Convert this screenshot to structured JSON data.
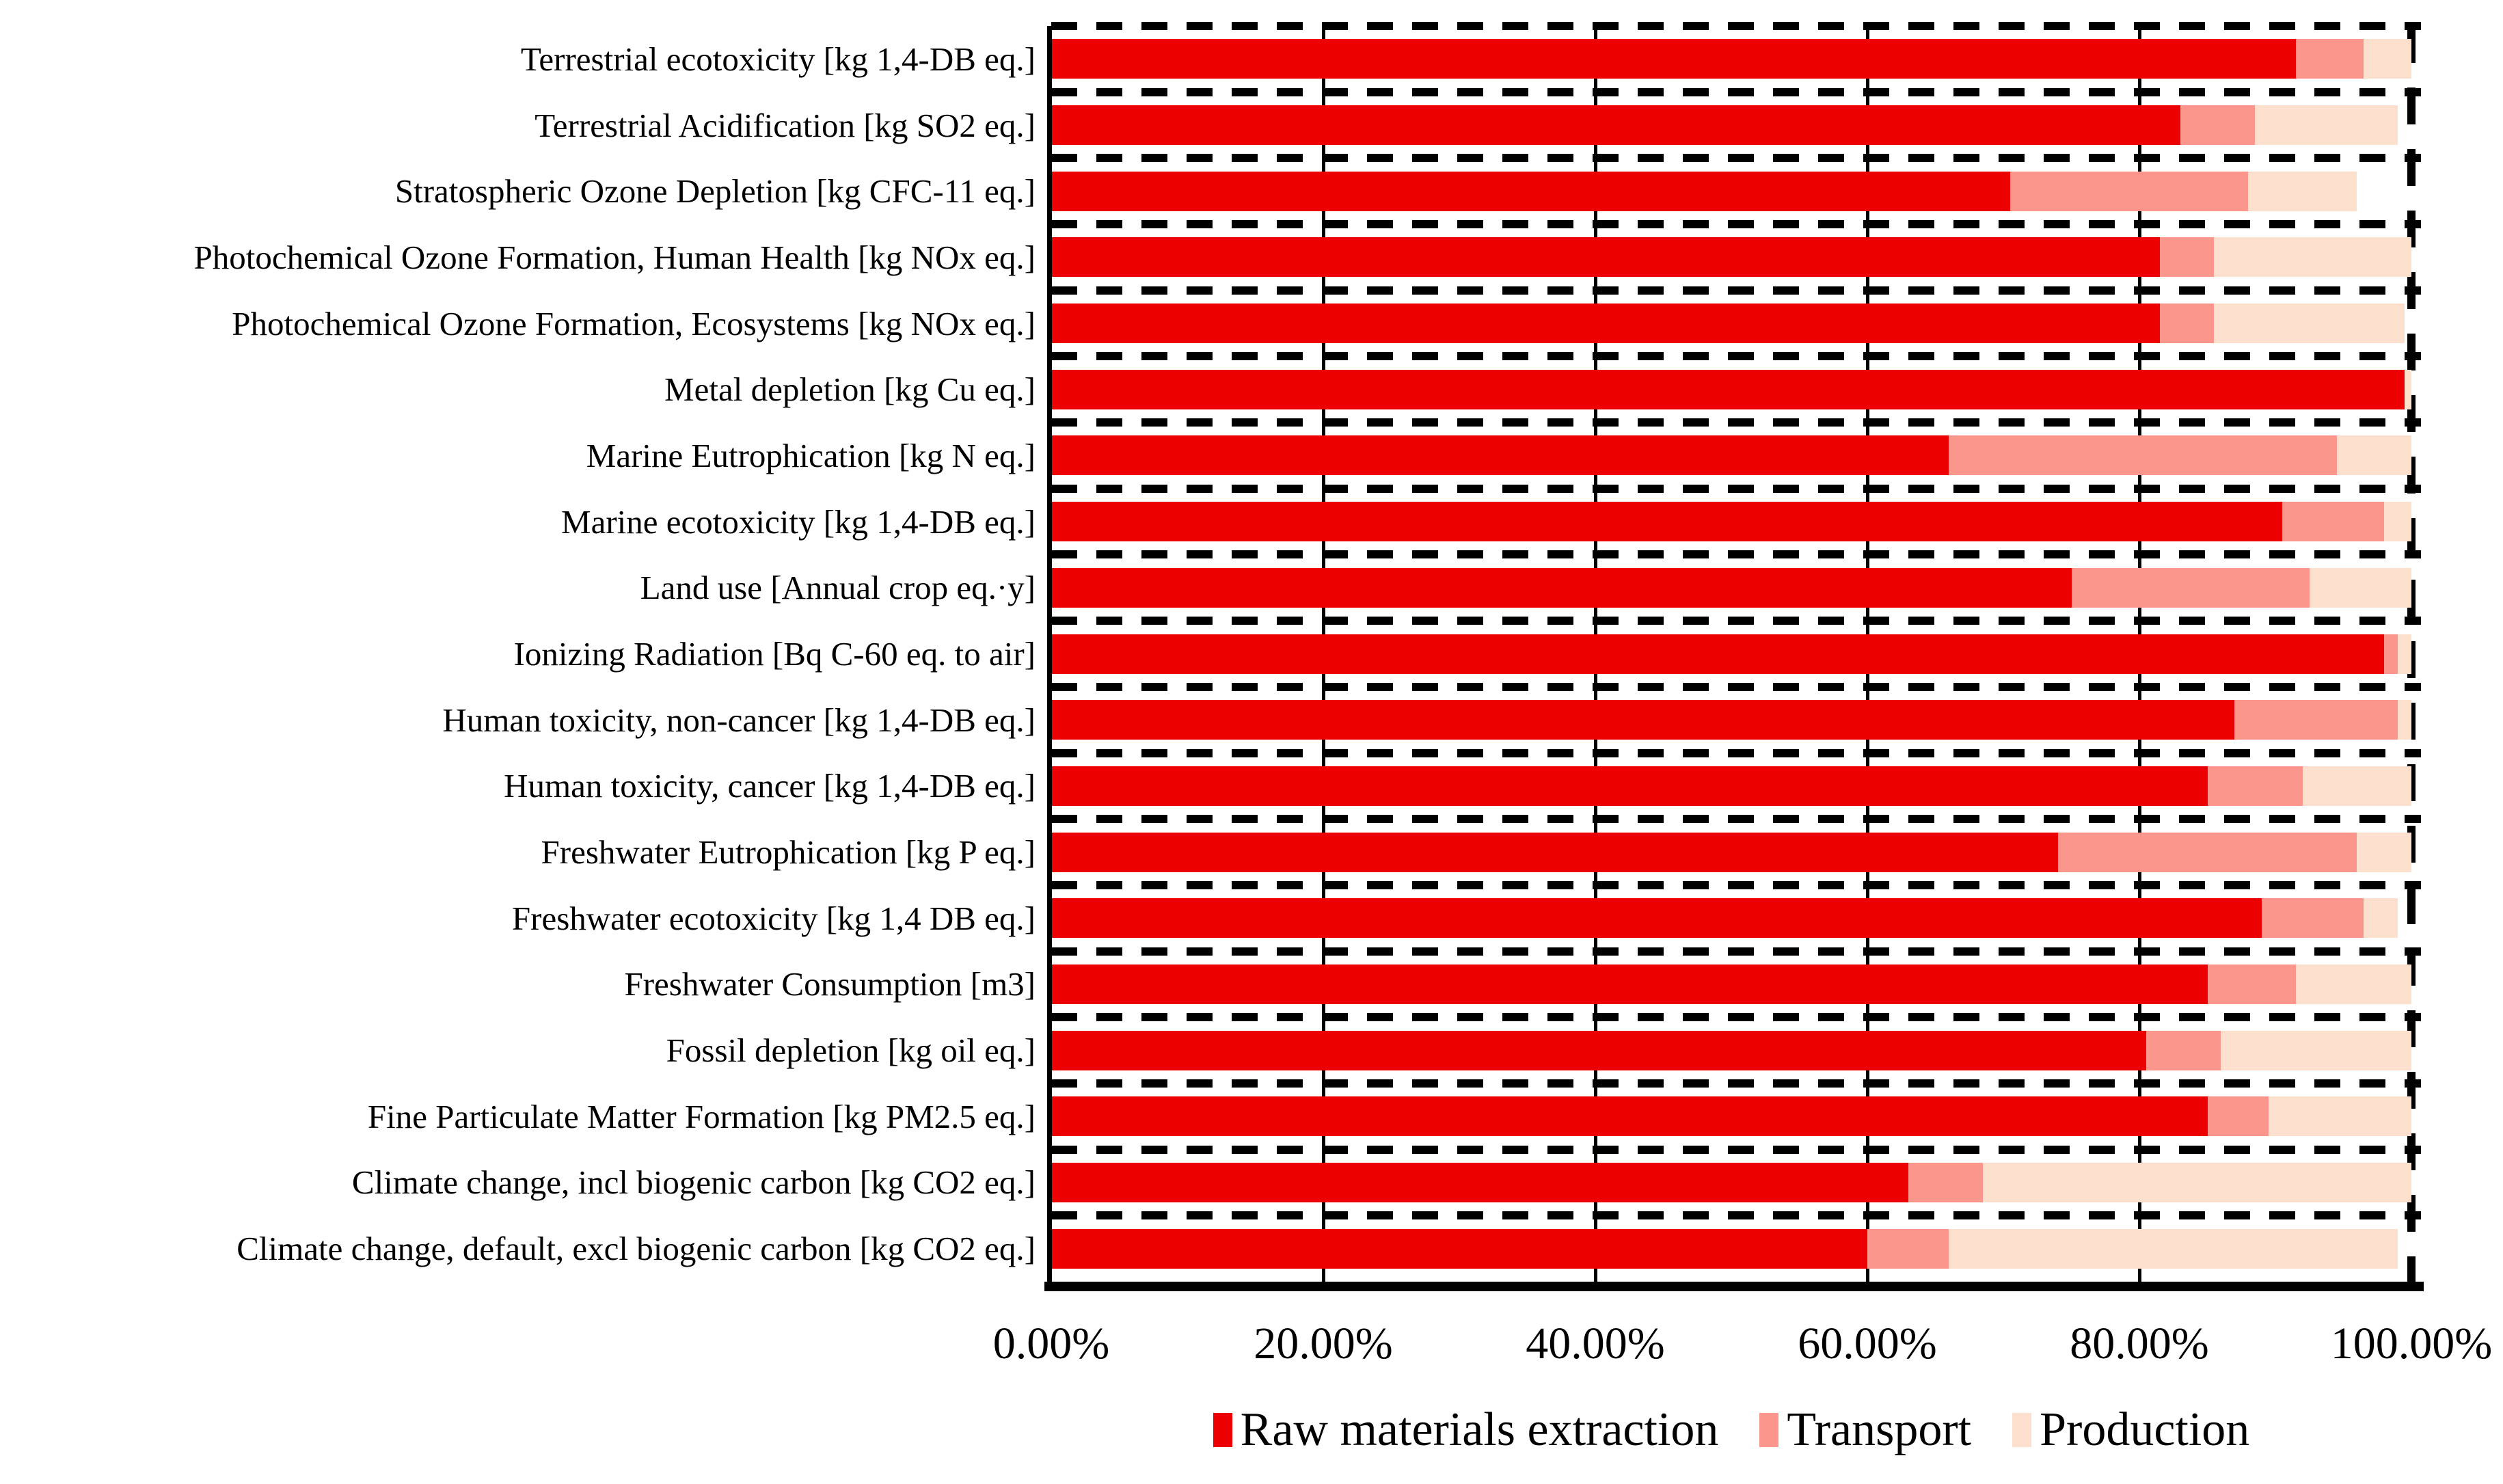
{
  "chart_data": {
    "type": "bar",
    "orientation": "horizontal",
    "stacked": true,
    "unit": "percent of impact per category",
    "title": "",
    "xlabel": "",
    "ylabel": "",
    "xlim": [
      0,
      100
    ],
    "x_tick_percents": [
      0,
      20,
      40,
      60,
      80,
      100
    ],
    "x_ticks": [
      "0.00%",
      "20.00%",
      "40.00%",
      "60.00%",
      "80.00%",
      "100.00%"
    ],
    "grid": "solid vertical major gridlines at 20-80%, dashed vertical border at 100%, dashed horizontal row separators",
    "legend_position": "bottom",
    "categories": [
      "Terrestrial ecotoxicity [kg 1,4-DB eq.]",
      "Terrestrial Acidification [kg SO2 eq.]",
      "Stratospheric Ozone Depletion [kg CFC-11 eq.]",
      "Photochemical Ozone Formation, Human Health [kg NOx eq.]",
      "Photochemical Ozone Formation, Ecosystems [kg NOx eq.]",
      "Metal depletion [kg Cu eq.]",
      "Marine Eutrophication [kg N eq.]",
      "Marine ecotoxicity [kg 1,4-DB eq.]",
      "Land use [Annual crop eq.·y]",
      "Ionizing Radiation [Bq C-60 eq. to air]",
      "Human toxicity, non-cancer [kg 1,4-DB eq.]",
      "Human toxicity, cancer [kg 1,4-DB eq.]",
      "Freshwater Eutrophication [kg P eq.]",
      "Freshwater ecotoxicity [kg 1,4 DB eq.]",
      "Freshwater Consumption [m3]",
      "Fossil depletion [kg oil eq.]",
      "Fine Particulate Matter Formation [kg PM2.5 eq.]",
      "Climate change, incl biogenic carbon [kg CO2 eq.]",
      "Climate change, default, excl biogenic carbon [kg CO2 eq.]"
    ],
    "series": [
      {
        "name": "Raw materials extraction",
        "color": "#ec0000",
        "values": [
          91.5,
          83,
          70.5,
          81.5,
          81.5,
          99.5,
          66,
          90.5,
          75,
          98,
          87,
          85,
          74,
          89,
          85,
          80.5,
          85,
          63,
          60
        ]
      },
      {
        "name": "Transport",
        "color": "#fa968b",
        "values": [
          5,
          5.5,
          17.5,
          4,
          4,
          0,
          28.5,
          7.5,
          17.5,
          1,
          12,
          7,
          22,
          7.5,
          6.5,
          5.5,
          4.5,
          5.5,
          6
        ]
      },
      {
        "name": "Production",
        "color": "#fcdfcd",
        "values": [
          3.5,
          10.5,
          8,
          14.5,
          14,
          0.5,
          5.5,
          2,
          7.5,
          1,
          1,
          8,
          4,
          2.5,
          8.5,
          14,
          10.5,
          31.5,
          33
        ]
      }
    ]
  },
  "colors": {
    "background": "#ffffff",
    "axis": "#000000",
    "gridline": "#000000",
    "text": "#000000"
  }
}
